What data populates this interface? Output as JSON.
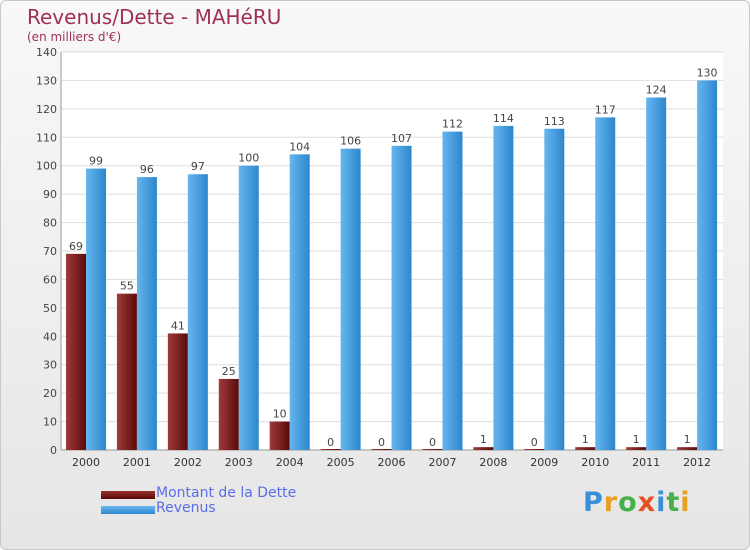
{
  "chart_data": {
    "type": "bar",
    "title": "Revenus/Dette - MAHéRU",
    "subtitle": "(en milliers d'€)",
    "categories": [
      "2000",
      "2001",
      "2002",
      "2003",
      "2004",
      "2005",
      "2006",
      "2007",
      "2008",
      "2009",
      "2010",
      "2011",
      "2012"
    ],
    "series": [
      {
        "name": "Montant de la Dette",
        "values": [
          69,
          55,
          41,
          25,
          10,
          0,
          0,
          0,
          1,
          0,
          1,
          1,
          1
        ],
        "color": "#7a1c1c"
      },
      {
        "name": "Revenus",
        "values": [
          99,
          96,
          97,
          100,
          104,
          106,
          107,
          112,
          114,
          113,
          117,
          124,
          130
        ],
        "color": "#4fa3e3"
      }
    ],
    "ylim": [
      0,
      140
    ],
    "yticks": [
      0,
      10,
      20,
      30,
      40,
      50,
      60,
      70,
      80,
      90,
      100,
      110,
      120,
      130,
      140
    ],
    "grid": true,
    "legend_position": "bottom-left"
  },
  "logo": {
    "letters": [
      {
        "char": "P",
        "color": "#3a8fd8"
      },
      {
        "char": "r",
        "color": "#e8a020"
      },
      {
        "char": "o",
        "color": "#48b048"
      },
      {
        "char": "x",
        "color": "#e85020"
      },
      {
        "char": "i",
        "color": "#3a8fd8"
      },
      {
        "char": "t",
        "color": "#48b048"
      },
      {
        "char": "i",
        "color": "#e8a020"
      }
    ]
  }
}
